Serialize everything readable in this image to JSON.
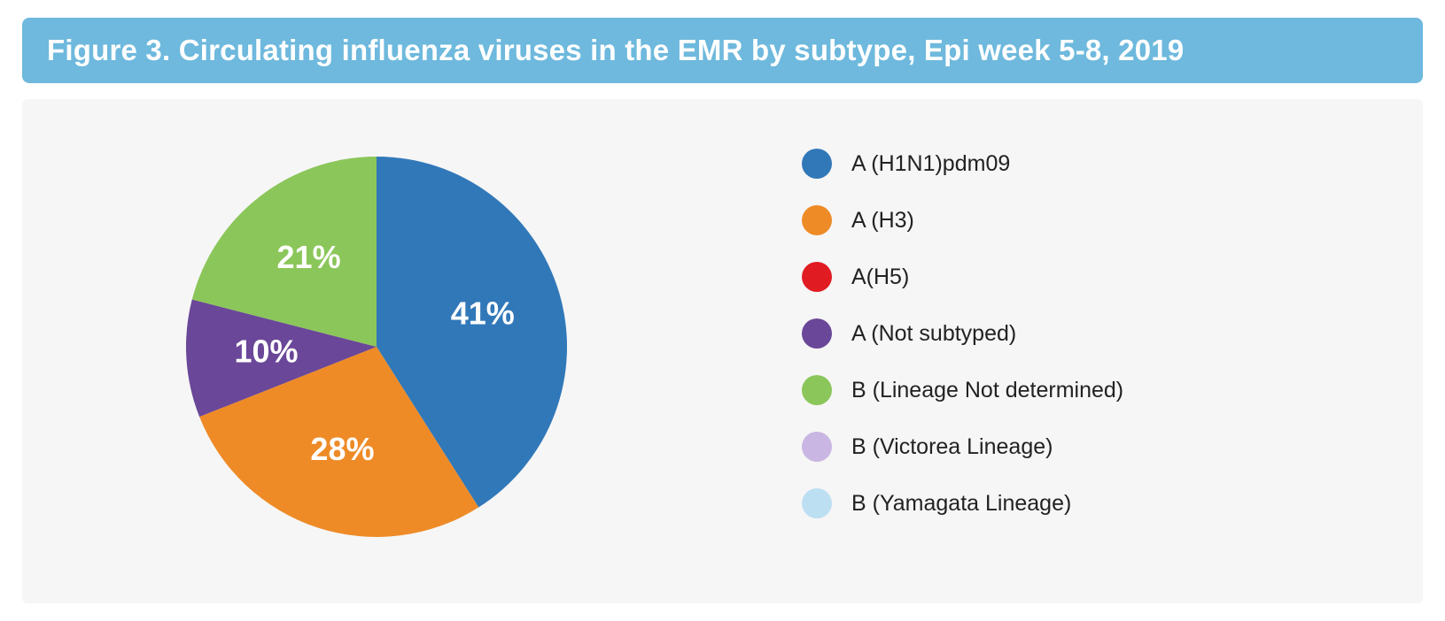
{
  "chart": {
    "type": "pie",
    "title": "Figure 3. Circulating influenza viruses in the EMR by subtype, Epi week 5-8, 2019",
    "title_bg": "#6eb9dd",
    "title_color": "#ffffff",
    "title_fontsize": 33,
    "panel_bg": "#f6f6f6",
    "pie_radius": 215,
    "label_fontsize": 36,
    "label_color": "#ffffff",
    "legend_fontsize": 25,
    "legend_text_color": "#222222",
    "legend_swatch_size": 34,
    "slices": [
      {
        "label": "A (H1N1)pdm09",
        "value": 41,
        "display": "41%",
        "color": "#3178b9"
      },
      {
        "label": "A (H3)",
        "value": 28,
        "display": "28%",
        "color": "#ee8b27"
      },
      {
        "label": "A(H5)",
        "value": 0,
        "display": "",
        "color": "#e11b22"
      },
      {
        "label": "A (Not subtyped)",
        "value": 10,
        "display": "10%",
        "color": "#6a4798"
      },
      {
        "label": "B (Lineage Not determined)",
        "value": 21,
        "display": "21%",
        "color": "#8bc65a"
      },
      {
        "label": "B (Victorea Lineage)",
        "value": 0,
        "display": "",
        "color": "#c9b6e3"
      },
      {
        "label": "B (Yamagata Lineage)",
        "value": 0,
        "display": "",
        "color": "#bcdff2"
      }
    ],
    "start_angle_deg": -90
  }
}
